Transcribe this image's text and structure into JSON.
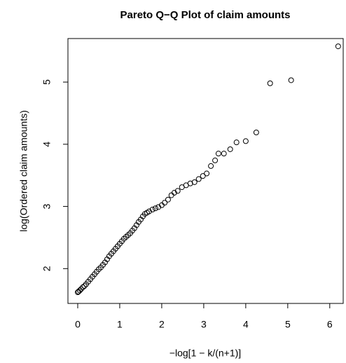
{
  "chart_data": {
    "type": "scatter",
    "title": "Pareto Q−Q Plot of claim amounts",
    "x_label": "−log[1 − k/(n+1)]",
    "y_label": "log(Ordered claim amounts)",
    "x": [
      0.0,
      0.02,
      0.05,
      0.08,
      0.12,
      0.16,
      0.2,
      0.25,
      0.3,
      0.35,
      0.4,
      0.45,
      0.5,
      0.55,
      0.6,
      0.65,
      0.7,
      0.75,
      0.8,
      0.85,
      0.9,
      0.95,
      1.0,
      1.05,
      1.1,
      1.15,
      1.2,
      1.25,
      1.3,
      1.35,
      1.4,
      1.45,
      1.5,
      1.55,
      1.6,
      1.65,
      1.7,
      1.78,
      1.85,
      1.92,
      2.0,
      2.07,
      2.15,
      2.23,
      2.3,
      2.38,
      2.48,
      2.58,
      2.68,
      2.78,
      2.88,
      2.98,
      3.07,
      3.17,
      3.27,
      3.35,
      3.48,
      3.63,
      3.78,
      4.0,
      4.25,
      4.58,
      5.08,
      6.2
    ],
    "y": [
      1.62,
      1.63,
      1.65,
      1.67,
      1.7,
      1.72,
      1.75,
      1.79,
      1.83,
      1.87,
      1.91,
      1.95,
      1.99,
      2.02,
      2.06,
      2.1,
      2.15,
      2.2,
      2.24,
      2.28,
      2.32,
      2.36,
      2.4,
      2.44,
      2.48,
      2.51,
      2.54,
      2.57,
      2.61,
      2.65,
      2.7,
      2.75,
      2.79,
      2.84,
      2.88,
      2.9,
      2.92,
      2.95,
      2.97,
      2.99,
      3.02,
      3.06,
      3.11,
      3.18,
      3.22,
      3.25,
      3.31,
      3.34,
      3.37,
      3.39,
      3.44,
      3.49,
      3.53,
      3.65,
      3.74,
      3.85,
      3.85,
      3.92,
      4.03,
      4.05,
      4.19,
      4.98,
      5.03,
      5.575
    ],
    "xlim": [
      -0.233,
      6.32
    ],
    "ylim": [
      1.44,
      5.7
    ],
    "xticks": [
      0,
      1,
      2,
      3,
      4,
      5,
      6
    ],
    "yticks": [
      2,
      3,
      4,
      5
    ],
    "color": "#000000"
  }
}
